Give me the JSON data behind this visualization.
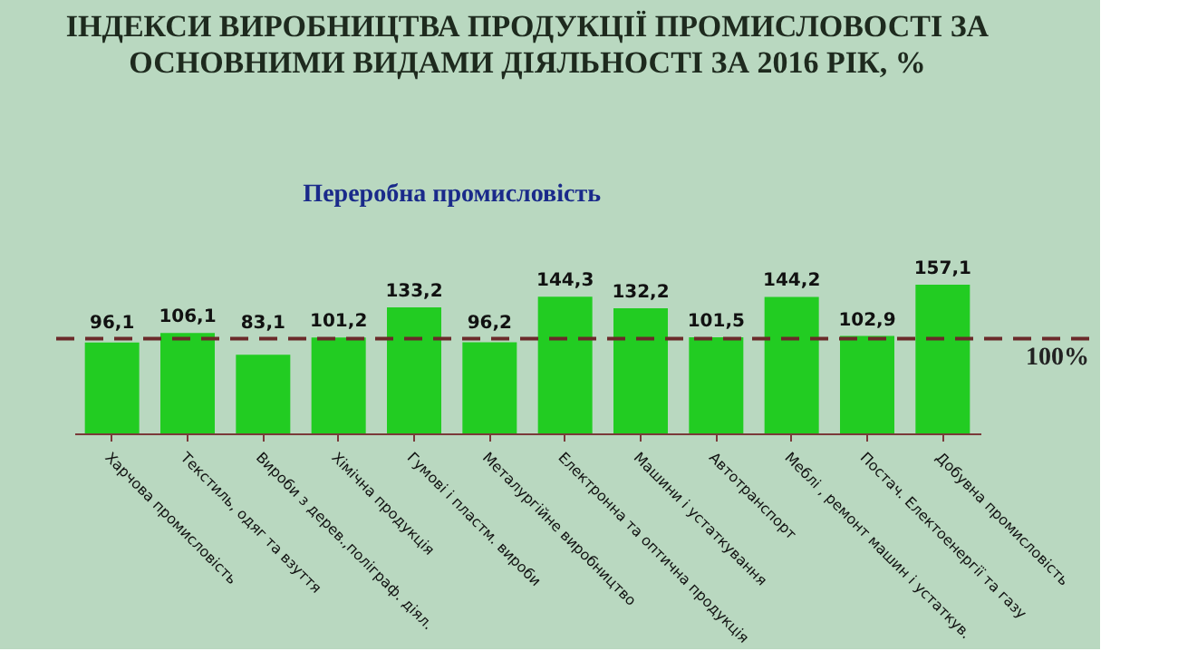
{
  "chart_data": {
    "type": "bar",
    "title": "ІНДЕКСИ ВИРОБНИЦТВА ПРОДУКЦІЇ ПРОМИСЛОВОСТІ ЗА ОСНОВНИМИ ВИДАМИ ДІЯЛЬНОСТІ ЗА 2016 РІК, %",
    "annotations": [
      "Переробна промисловість"
    ],
    "categories": [
      "Харчова промисловість",
      "Текстиль, одяг та взуття",
      "Вироби з дерев.,поліграф. діял.",
      "Хімічна продукція",
      "Гумові і пластм. вироби",
      "Металургійне виробництво",
      "Електронна та оптична продукція",
      "Машини і устаткування",
      "Автотранспорт",
      "Меблі , ремонт машин і устаткув.",
      "Постач. Електоенергії та газу",
      "Добувна промисловість"
    ],
    "values": [
      96.1,
      106.1,
      83.1,
      101.2,
      133.2,
      96.2,
      144.3,
      132.2,
      101.5,
      144.2,
      102.9,
      157.1
    ],
    "value_labels": [
      "96,1",
      "106,1",
      "83,1",
      "101,2",
      "133,2",
      "96,2",
      "144,3",
      "132,2",
      "101,5",
      "144,2",
      "102,9",
      "157,1"
    ],
    "color": "#22cc22",
    "ref_lines": [
      {
        "axis": "y",
        "value": 100,
        "label": "100%",
        "color": "#6b2a2a",
        "line_style": "dashed"
      }
    ],
    "grid": false,
    "tick_labels": "x"
  }
}
